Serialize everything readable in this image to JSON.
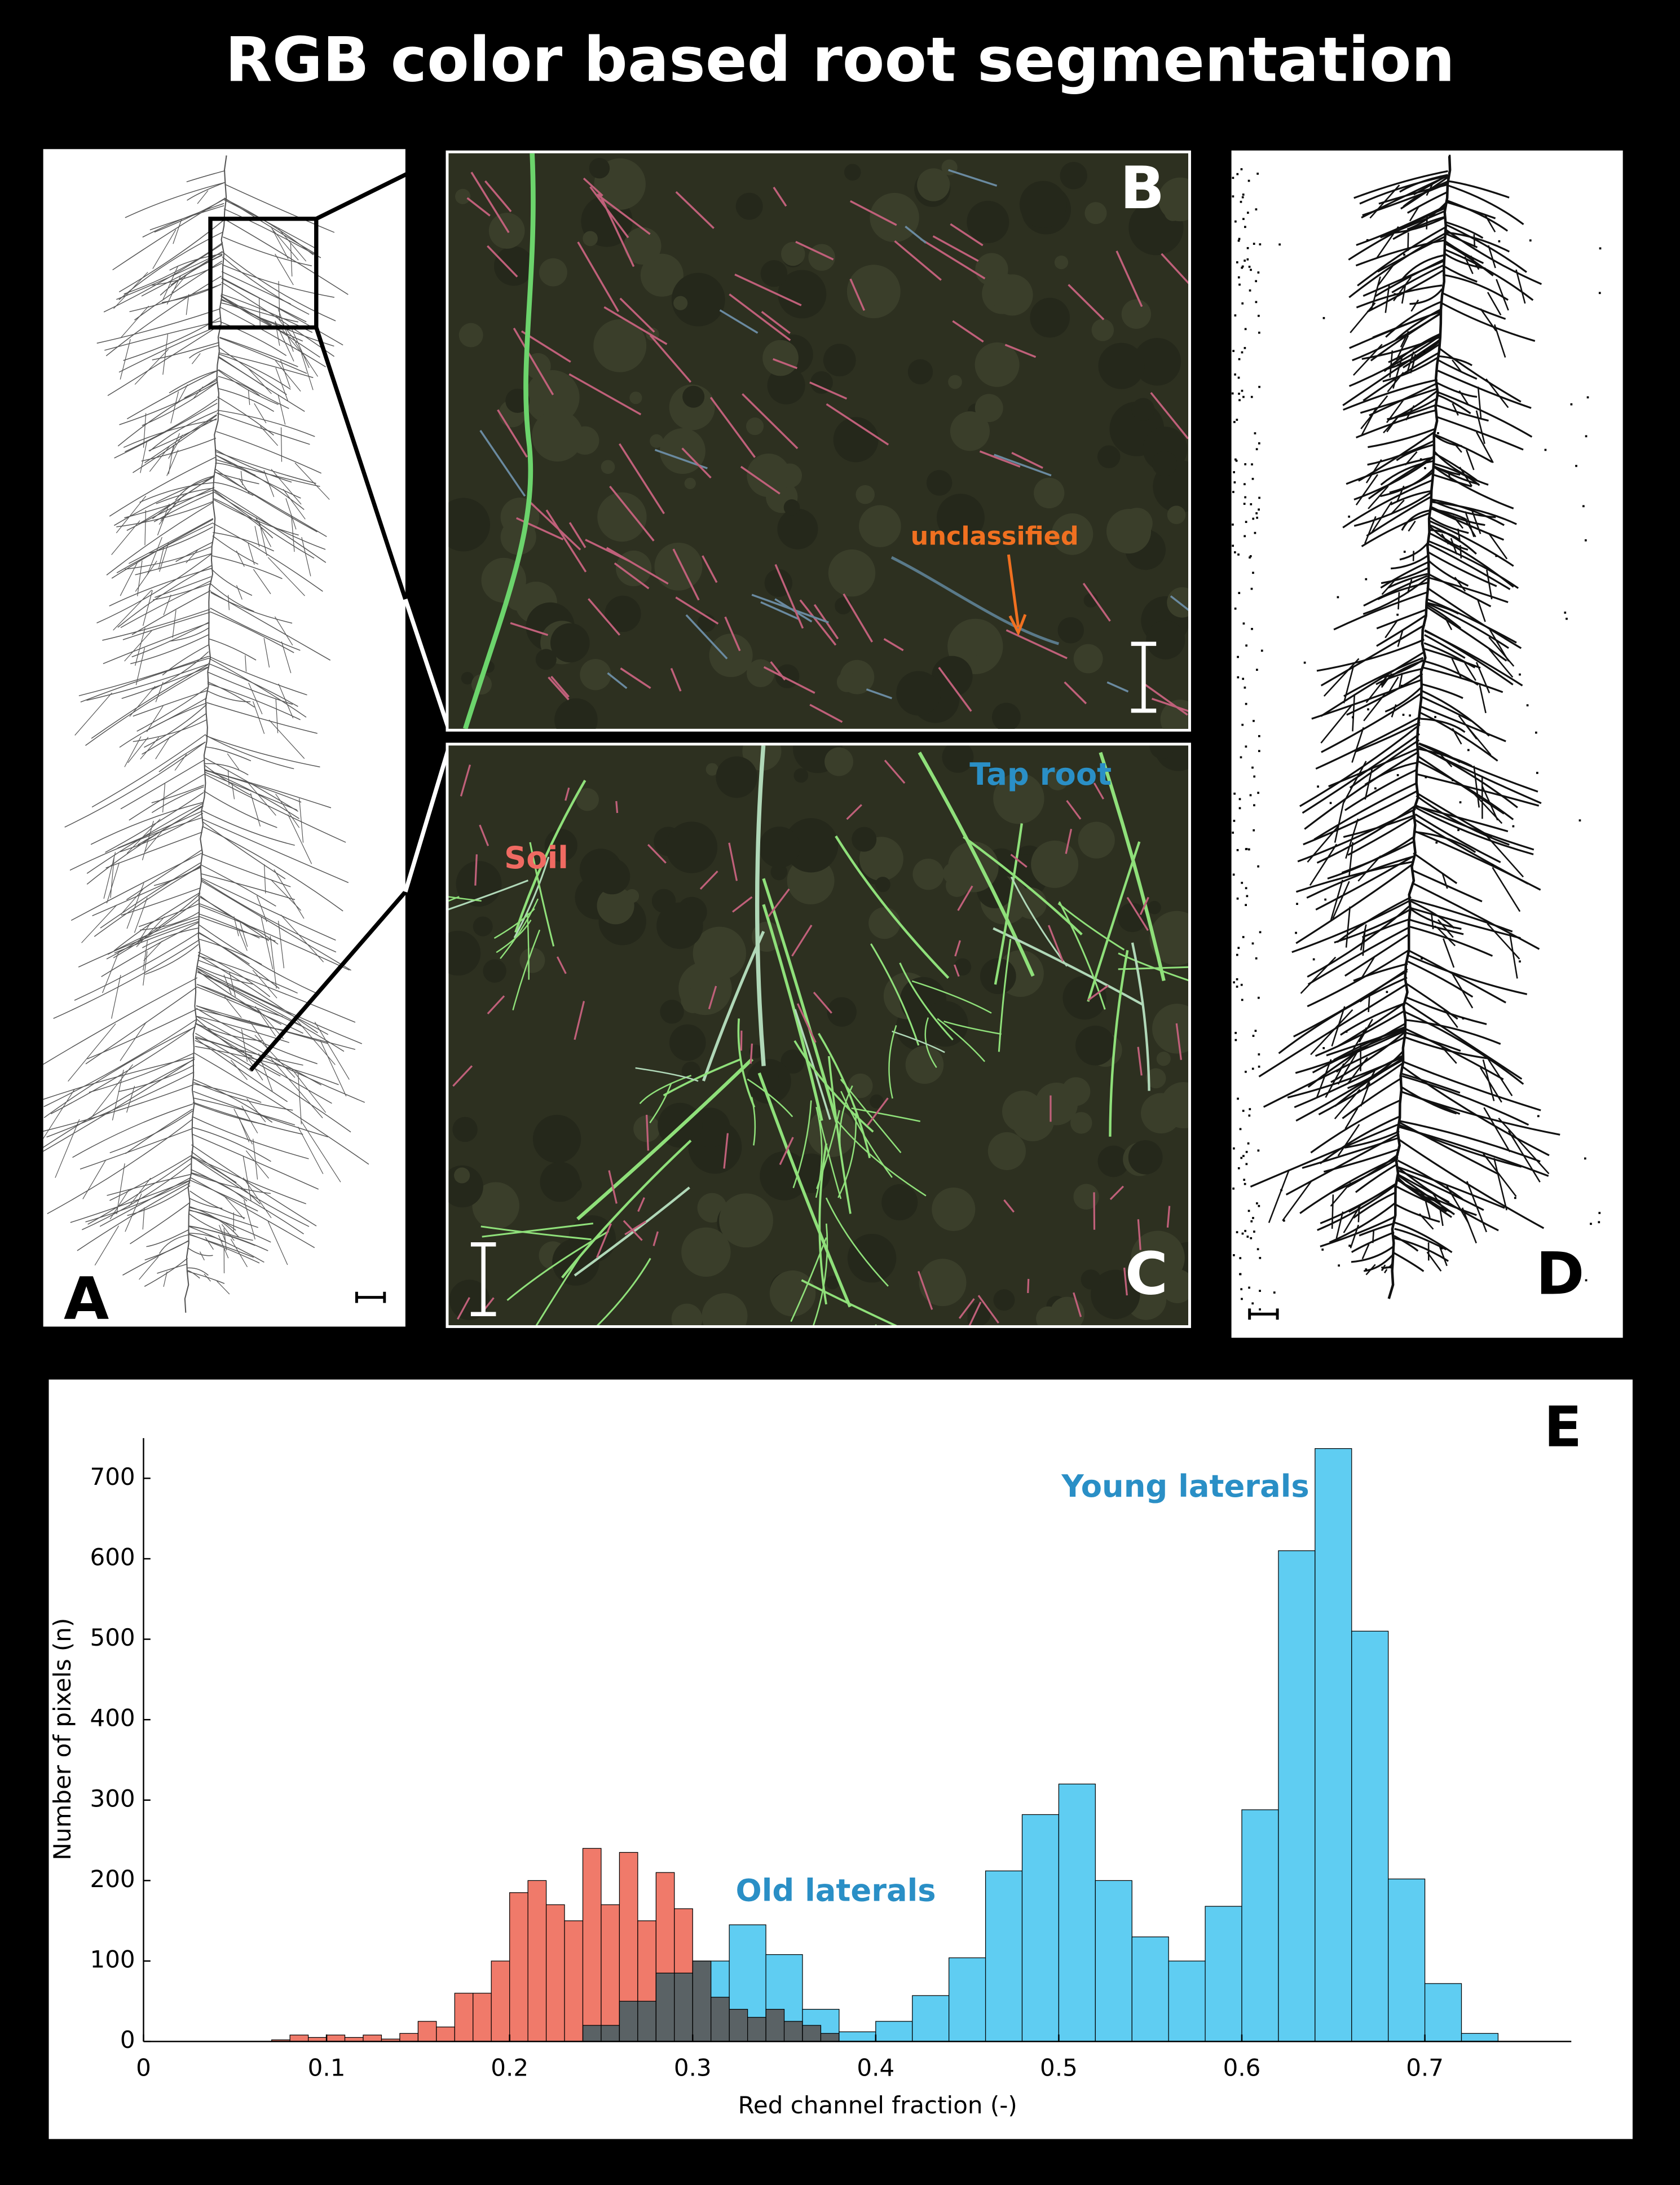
{
  "title": "RGB color based root segmentation",
  "panels": [
    {
      "label": "A"
    },
    {
      "label": "B",
      "annotation": "unclassified"
    },
    {
      "label": "C"
    },
    {
      "label": "D"
    }
  ],
  "chart_data": {
    "type": "histogram",
    "panel_label": "E",
    "xlabel": "Red channel fraction (-)",
    "ylabel": "Number of pixels (n)",
    "xlim": [
      0,
      0.78
    ],
    "ylim": [
      0,
      750
    ],
    "xticks": [
      0,
      0.1,
      0.2,
      0.3,
      0.4,
      0.5,
      0.6,
      0.7
    ],
    "yticks": [
      0,
      100,
      200,
      300,
      400,
      500,
      600,
      700
    ],
    "series": [
      {
        "color": "#5fcdf2",
        "bins": [
          0.24,
          0.26,
          0.28,
          0.3,
          0.32,
          0.34,
          0.36,
          0.38,
          0.4,
          0.42,
          0.44,
          0.46,
          0.48,
          0.5,
          0.52,
          0.54,
          0.56,
          0.58,
          0.6,
          0.62,
          0.64,
          0.66,
          0.68,
          0.7,
          0.72,
          0.74
        ],
        "values": [
          20,
          50,
          85,
          100,
          145,
          108,
          40,
          12,
          25,
          57,
          104,
          212,
          282,
          320,
          200,
          130,
          100,
          168,
          288,
          610,
          737,
          510,
          202,
          72,
          10
        ]
      },
      {
        "color": "#f07a6a",
        "bins": [
          0.07,
          0.08,
          0.09,
          0.1,
          0.11,
          0.12,
          0.13,
          0.14,
          0.15,
          0.16,
          0.17,
          0.18,
          0.19,
          0.2,
          0.21,
          0.22,
          0.23,
          0.24,
          0.25,
          0.26,
          0.27,
          0.28,
          0.29,
          0.3,
          0.31,
          0.32,
          0.33,
          0.34,
          0.35,
          0.36,
          0.37,
          0.38
        ],
        "values": [
          2,
          8,
          5,
          8,
          5,
          8,
          3,
          10,
          25,
          18,
          60,
          60,
          100,
          185,
          200,
          170,
          150,
          240,
          170,
          235,
          150,
          210,
          165,
          100,
          55,
          40,
          30,
          40,
          25,
          20,
          10
        ]
      }
    ],
    "annotations": [
      {
        "text": "Soil",
        "color": "#f06a62"
      },
      {
        "text": "Old laterals",
        "color": "#2a8fc6"
      },
      {
        "text": "Tap root",
        "color": "#2a8fc6"
      },
      {
        "text": "Young laterals",
        "color": "#2a8fc6"
      }
    ]
  }
}
